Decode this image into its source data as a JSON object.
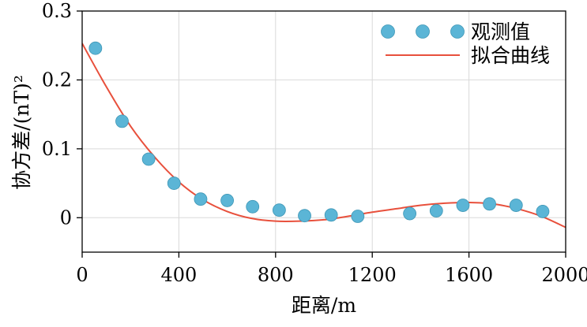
{
  "chart_data": {
    "type": "scatter",
    "xlabel": "距离/m",
    "ylabel": "协方差/(nT)²",
    "xlim": [
      0,
      2000
    ],
    "ylim": [
      -0.05,
      0.3
    ],
    "xticks": [
      0,
      400,
      800,
      1200,
      1600,
      2000
    ],
    "xtick_labels": [
      "0",
      "400",
      "800",
      "1200",
      "1600",
      "2000"
    ],
    "yticks": [
      0,
      0.1,
      0.2,
      0.3
    ],
    "ytick_labels": [
      "0",
      "0.1",
      "0.2",
      "0.3"
    ],
    "grid": true,
    "legend_position": "top-right",
    "series": [
      {
        "name": "观测值",
        "kind": "scatter",
        "color": "#5bb5d6",
        "x": [
          55,
          165,
          275,
          380,
          490,
          600,
          705,
          815,
          920,
          1030,
          1140,
          1355,
          1465,
          1575,
          1685,
          1795,
          1905
        ],
        "y": [
          0.246,
          0.14,
          0.085,
          0.05,
          0.027,
          0.025,
          0.016,
          0.011,
          0.003,
          0.004,
          0.002,
          0.006,
          0.01,
          0.018,
          0.02,
          0.018,
          0.009
        ]
      },
      {
        "name": "拟合曲线",
        "kind": "line",
        "color": "#e8503c",
        "x": [
          0,
          100,
          200,
          300,
          400,
          500,
          600,
          700,
          800,
          900,
          1000,
          1100,
          1200,
          1300,
          1400,
          1500,
          1600,
          1700,
          1800,
          1900,
          2000
        ],
        "y": [
          0.253,
          0.19,
          0.133,
          0.088,
          0.052,
          0.026,
          0.009,
          -0.001,
          -0.005,
          -0.005,
          -0.003,
          0.002,
          0.008,
          0.013,
          0.018,
          0.021,
          0.022,
          0.02,
          0.013,
          0.002,
          -0.014
        ]
      }
    ]
  }
}
